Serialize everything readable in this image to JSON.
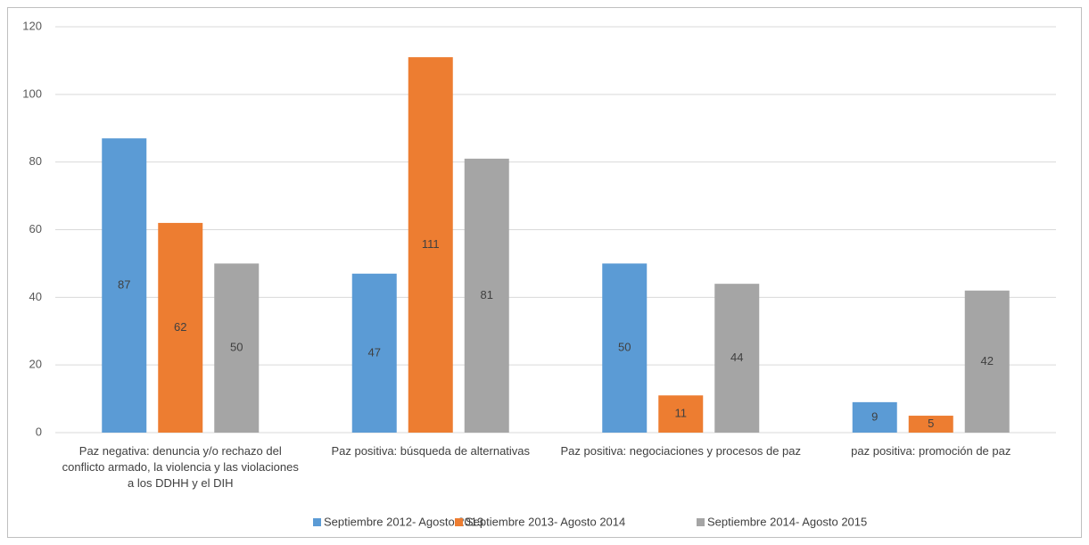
{
  "chart_data": {
    "type": "bar",
    "categories": [
      "Paz negativa: denuncia y/o rechazo del conflicto armado, la violencia y las violaciones a los DDHH y el DIH",
      "Paz positiva: búsqueda de alternativas",
      "Paz positiva: negociaciones y procesos de paz",
      "paz positiva: promoción de paz"
    ],
    "series": [
      {
        "name": "Septiembre 2012- Agosto 2013",
        "color": "#5b9bd5",
        "values": [
          87,
          47,
          50,
          9
        ]
      },
      {
        "name": "Septiembre 2013- Agosto 2014",
        "color": "#ed7d31",
        "values": [
          62,
          111,
          11,
          5
        ]
      },
      {
        "name": "Septiembre 2014- Agosto 2015",
        "color": "#a5a5a5",
        "values": [
          50,
          81,
          44,
          42
        ]
      }
    ],
    "ylim": [
      0,
      120
    ],
    "yticks": [
      0,
      20,
      40,
      60,
      80,
      100,
      120
    ],
    "grid": true,
    "legend": "bottom"
  }
}
